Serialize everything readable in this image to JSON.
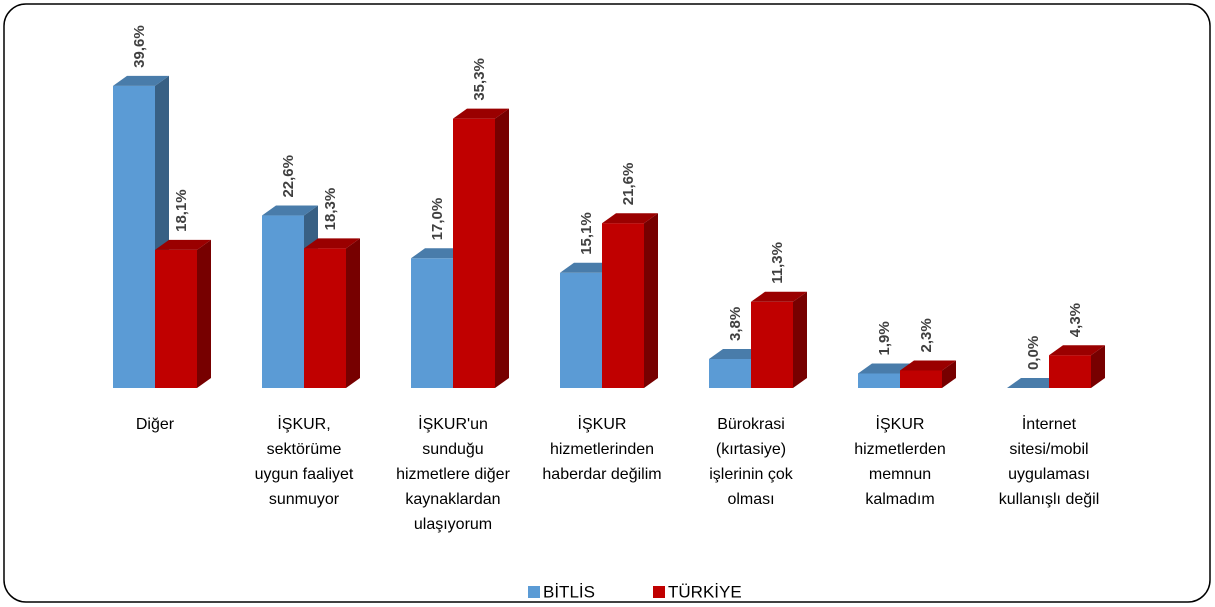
{
  "chart_data": {
    "type": "bar3d",
    "categories": [
      "Diğer",
      "İŞKUR, sektörüme uygun faaliyet sunmuyor",
      "İŞKUR'un sunduğu hizmetlere diğer kaynaklardan ulaşıyorum",
      "İŞKUR hizmetlerinden haberdar değilim",
      "Bürokrasi (kırtasiye) işlerinin çok olması",
      "İŞKUR hizmetlerden memnun kalmadım",
      "İnternet sitesi/mobil uygulaması kullanışlı değil"
    ],
    "series": [
      {
        "name": "BİTLİS",
        "color": "#5b9bd5",
        "values": [
          39.6,
          22.6,
          17.0,
          15.1,
          3.8,
          1.9,
          0.0
        ],
        "value_labels": [
          "39,6%",
          "22,6%",
          "17,0%",
          "15,1%",
          "3,8%",
          "1,9%",
          "0,0%"
        ]
      },
      {
        "name": "TÜRKİYE",
        "color": "#c00000",
        "values": [
          18.1,
          18.3,
          35.3,
          21.6,
          11.3,
          2.3,
          4.3
        ],
        "value_labels": [
          "18,1%",
          "18,3%",
          "35,3%",
          "21,6%",
          "11,3%",
          "2,3%",
          "4,3%"
        ]
      }
    ],
    "legend": "bottom"
  }
}
